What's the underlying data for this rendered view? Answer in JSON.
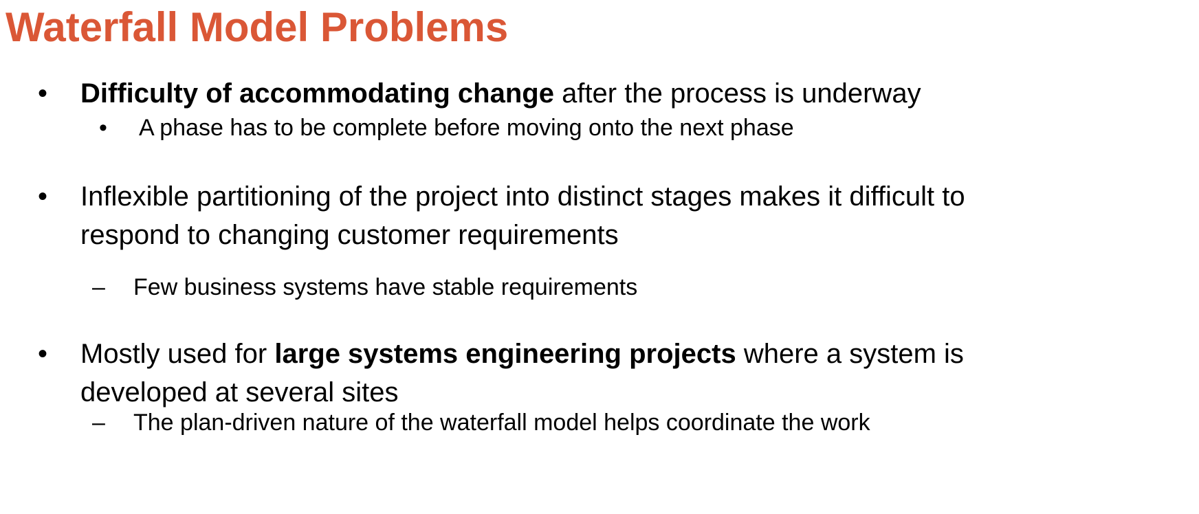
{
  "slide": {
    "title": "Waterfall Model Problems",
    "accent_color": "#DA5736",
    "text_color": "#000000",
    "bullets": [
      {
        "marker": "•",
        "bold": "Difficulty of accommodating change",
        "rest": " after the process is underway",
        "sub": {
          "marker": "•",
          "text": "A phase has to be complete before moving onto the next phase"
        }
      },
      {
        "marker": "•",
        "line1": "Inflexible partitioning of the project into distinct stages makes it difficult to",
        "line2": "respond to changing customer requirements",
        "sub": {
          "marker": "–",
          "text": "Few business systems have stable requirements"
        }
      },
      {
        "marker": "•",
        "pre": "Mostly used for ",
        "bold": "large systems engineering projects",
        "post": " where a system is",
        "line2": "developed at several sites",
        "sub": {
          "marker": "–",
          "text": "The plan-driven nature of the waterfall model helps coordinate the work"
        }
      }
    ]
  }
}
